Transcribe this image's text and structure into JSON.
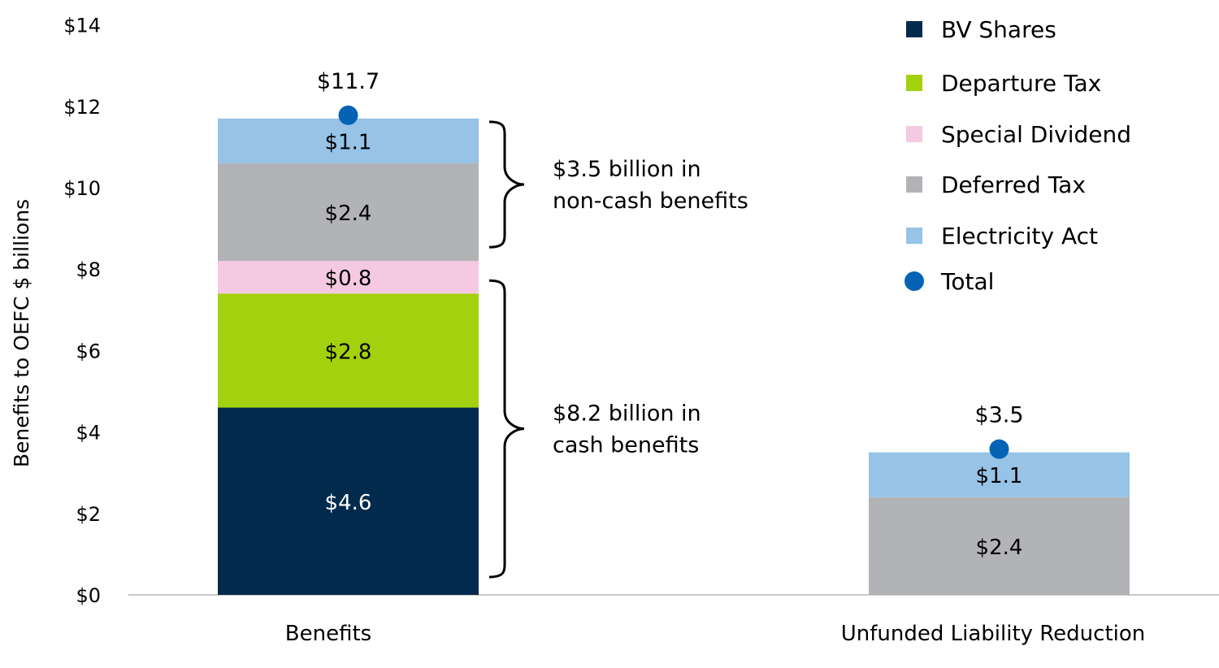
{
  "chart_data": {
    "type": "bar",
    "stacked": true,
    "categories": [
      "Benefits",
      "Unfunded Liability Reduction"
    ],
    "ylabel": "Benefits to OEFC $ billions",
    "ylim": [
      0,
      14
    ],
    "yticks": [
      0,
      2,
      4,
      6,
      8,
      10,
      12,
      14
    ],
    "ytick_labels": [
      "$0",
      "$2",
      "$4",
      "$6",
      "$8",
      "$10",
      "$12",
      "$14"
    ],
    "grid": false,
    "legend_position": "top-right",
    "series": [
      {
        "name": "BV Shares",
        "color": "#012a4c",
        "values": [
          4.6,
          null
        ],
        "labels": [
          "$4.6",
          ""
        ],
        "label_color": "#ffffff"
      },
      {
        "name": "Departure Tax",
        "color": "#a3d10d",
        "values": [
          2.8,
          null
        ],
        "labels": [
          "$2.8",
          ""
        ],
        "label_color": "#000000"
      },
      {
        "name": "Special Dividend",
        "color": "#f5c9e1",
        "values": [
          0.8,
          null
        ],
        "labels": [
          "$0.8",
          ""
        ],
        "label_color": "#000000"
      },
      {
        "name": "Deferred Tax",
        "color": "#b2b3b6",
        "values": [
          2.4,
          2.4
        ],
        "labels": [
          "$2.4",
          "$2.4"
        ],
        "label_color": "#000000"
      },
      {
        "name": "Electricity Act",
        "color": "#96c3e6",
        "values": [
          1.1,
          1.1
        ],
        "labels": [
          "$1.1",
          "$1.1"
        ],
        "label_color": "#000000"
      }
    ],
    "totals": {
      "name": "Total",
      "color": "#0563b5",
      "values": [
        11.7,
        3.5
      ],
      "labels": [
        "$11.7",
        "$3.5"
      ]
    },
    "annotations": [
      {
        "line1": "$3.5 billion in",
        "line2": "non-cash benefits",
        "from": 8.3,
        "to": 11.7
      },
      {
        "line1": "$8.2 billion in",
        "line2": "cash benefits",
        "from": 0.2,
        "to": 7.8
      }
    ]
  }
}
